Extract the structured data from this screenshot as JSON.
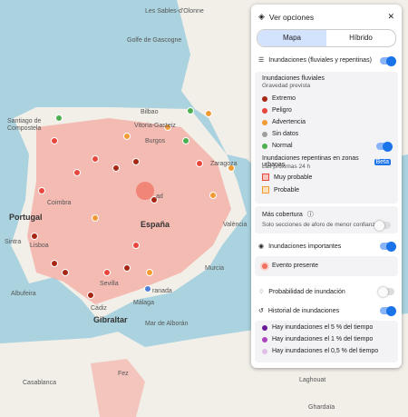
{
  "panel": {
    "title": "Ver opciones",
    "tabs": [
      "Mapa",
      "Híbrido"
    ],
    "floods": {
      "title": "Inundaciones (fluviales y repentinas)",
      "river_title": "Inundaciones fluviales",
      "river_subtitle": "Gravedad prevista",
      "levels": [
        "Extremo",
        "Peligro",
        "Advertencia",
        "Sin datos",
        "Normal"
      ],
      "urban_title": "Inundaciones repentinas en zonas urbanas",
      "urban_badge": "Beta",
      "urban_subtitle": "Las próximas 24 h",
      "urban_levels": [
        "Muy probable",
        "Probable"
      ]
    },
    "coverage": {
      "title": "Más cobertura",
      "subtitle": "Solo secciones de aforo de menor confianza"
    },
    "major": {
      "title": "Inundaciones importantes",
      "item": "Evento presente"
    },
    "probability": {
      "title": "Probabilidad de inundación"
    },
    "history": {
      "title": "Historial de inundaciones",
      "items": [
        "Hay inundaciones el 5 % del tiempo",
        "Hay inundaciones el 1 % del tiempo",
        "Hay inundaciones el 0,5 % del tiempo"
      ]
    }
  },
  "map_labels": [
    "Les Sables-d'Olonne",
    "Golfe de Gascogne",
    "Santiago de",
    "Compostela",
    "Bilbao",
    "Vitoria-Gasteiz",
    "Burgos",
    "Zaragoza",
    "Portugal",
    "Coimbra",
    "Lisboa",
    "Sintra",
    "España",
    "ad",
    "València",
    "Albufeira",
    "Sevilla",
    "Murcia",
    "ranada",
    "Málaga",
    "Cádiz",
    "Gibraltar",
    "Mar de Alborán",
    "Fez",
    "Casablanca",
    "Laghouat",
    "Ghardaïa"
  ]
}
